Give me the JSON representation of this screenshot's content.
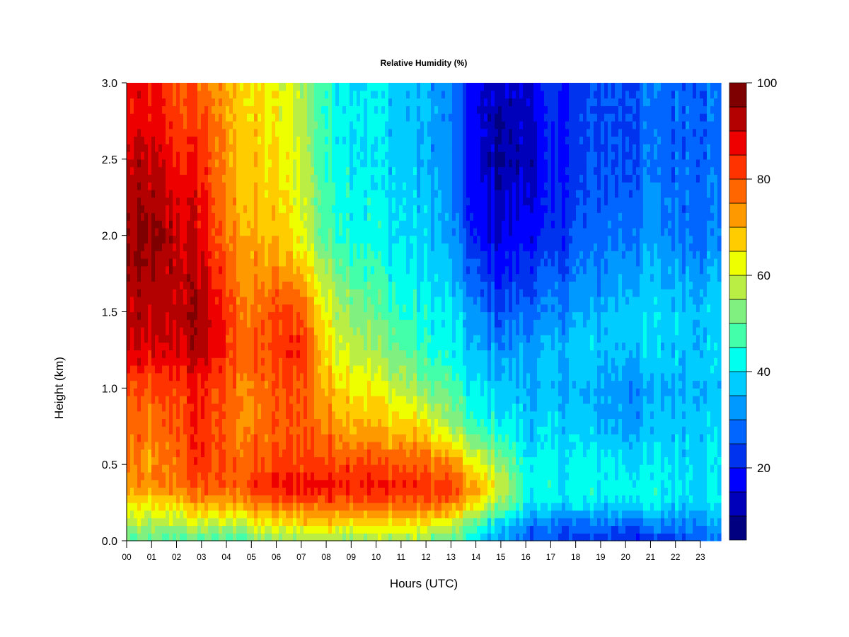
{
  "chart_data": {
    "type": "heatmap",
    "title": "Relative Humidity (%)",
    "xlabel": "Hours (UTC)",
    "ylabel": "Height (km)",
    "xlim": [
      0,
      23.83
    ],
    "ylim": [
      0,
      3.0
    ],
    "x_tick_labels": [
      "00",
      "01",
      "02",
      "03",
      "04",
      "05",
      "06",
      "07",
      "08",
      "09",
      "10",
      "11",
      "12",
      "13",
      "14",
      "15",
      "16",
      "17",
      "18",
      "19",
      "20",
      "21",
      "22",
      "23"
    ],
    "y_tick_labels": [
      "0.0",
      "0.5",
      "1.0",
      "1.5",
      "2.0",
      "2.5",
      "3.0"
    ],
    "hours": [
      0,
      1,
      2,
      3,
      4,
      5,
      6,
      7,
      8,
      9,
      10,
      11,
      12,
      13,
      14,
      15,
      16,
      17,
      18,
      19,
      20,
      21,
      22,
      23
    ],
    "heights_km": [
      0,
      0.1,
      0.25,
      0.35,
      0.5,
      0.75,
      1.0,
      1.25,
      1.5,
      2.0,
      2.5,
      3.0
    ],
    "values": [
      [
        48,
        48,
        48,
        48,
        45,
        50,
        52,
        55,
        55,
        55,
        55,
        55,
        52,
        50,
        40,
        33,
        28,
        25,
        23,
        22,
        20,
        20,
        25,
        28
      ],
      [
        55,
        55,
        55,
        58,
        55,
        60,
        62,
        65,
        65,
        65,
        65,
        65,
        62,
        58,
        45,
        38,
        30,
        28,
        27,
        28,
        28,
        28,
        30,
        32
      ],
      [
        65,
        65,
        68,
        72,
        70,
        75,
        78,
        80,
        80,
        80,
        80,
        78,
        78,
        76,
        65,
        55,
        42,
        40,
        40,
        40,
        40,
        42,
        40,
        40
      ],
      [
        72,
        72,
        75,
        80,
        78,
        82,
        85,
        88,
        88,
        87,
        85,
        85,
        83,
        82,
        70,
        60,
        45,
        42,
        42,
        42,
        42,
        42,
        40,
        40
      ],
      [
        75,
        72,
        78,
        85,
        78,
        78,
        80,
        82,
        82,
        82,
        80,
        80,
        78,
        75,
        62,
        55,
        42,
        40,
        42,
        42,
        40,
        40,
        40,
        40
      ],
      [
        78,
        75,
        80,
        85,
        78,
        75,
        78,
        80,
        75,
        72,
        70,
        68,
        65,
        55,
        45,
        42,
        38,
        38,
        38,
        35,
        35,
        35,
        38,
        38
      ],
      [
        80,
        78,
        82,
        85,
        78,
        75,
        78,
        80,
        70,
        65,
        62,
        58,
        52,
        48,
        40,
        38,
        35,
        35,
        35,
        33,
        32,
        33,
        35,
        37
      ],
      [
        90,
        88,
        90,
        93,
        82,
        78,
        82,
        85,
        65,
        60,
        55,
        50,
        45,
        42,
        35,
        32,
        33,
        35,
        38,
        38,
        37,
        38,
        37,
        38
      ],
      [
        92,
        90,
        92,
        95,
        82,
        75,
        80,
        80,
        62,
        55,
        50,
        45,
        42,
        40,
        30,
        25,
        28,
        30,
        33,
        35,
        38,
        38,
        38,
        38
      ],
      [
        95,
        95,
        92,
        88,
        75,
        70,
        68,
        62,
        48,
        45,
        42,
        40,
        38,
        32,
        18,
        15,
        18,
        20,
        25,
        28,
        30,
        32,
        30,
        30
      ],
      [
        90,
        90,
        85,
        85,
        72,
        68,
        65,
        60,
        45,
        42,
        40,
        38,
        35,
        30,
        15,
        10,
        12,
        18,
        22,
        25,
        25,
        28,
        28,
        28
      ],
      [
        85,
        85,
        80,
        78,
        70,
        65,
        62,
        58,
        45,
        42,
        40,
        38,
        35,
        30,
        15,
        12,
        15,
        20,
        22,
        25,
        25,
        28,
        28,
        28
      ]
    ],
    "colorbar": {
      "levels": [
        5,
        10,
        15,
        20,
        25,
        30,
        35,
        40,
        45,
        50,
        55,
        60,
        65,
        70,
        75,
        80,
        85,
        90,
        95,
        100
      ],
      "colors": [
        "#000080",
        "#0000bb",
        "#0000ff",
        "#0033ee",
        "#0066ff",
        "#0099ff",
        "#00ccff",
        "#00ffee",
        "#44ffaa",
        "#80f080",
        "#bbee44",
        "#eeff00",
        "#ffcc00",
        "#ff9900",
        "#ff6600",
        "#ff3300",
        "#ee0000",
        "#b30000",
        "#7f0000"
      ],
      "tick_values": [
        20,
        40,
        60,
        80,
        100
      ],
      "tick_labels": [
        "20",
        "40",
        "60",
        "80",
        "100"
      ]
    }
  }
}
